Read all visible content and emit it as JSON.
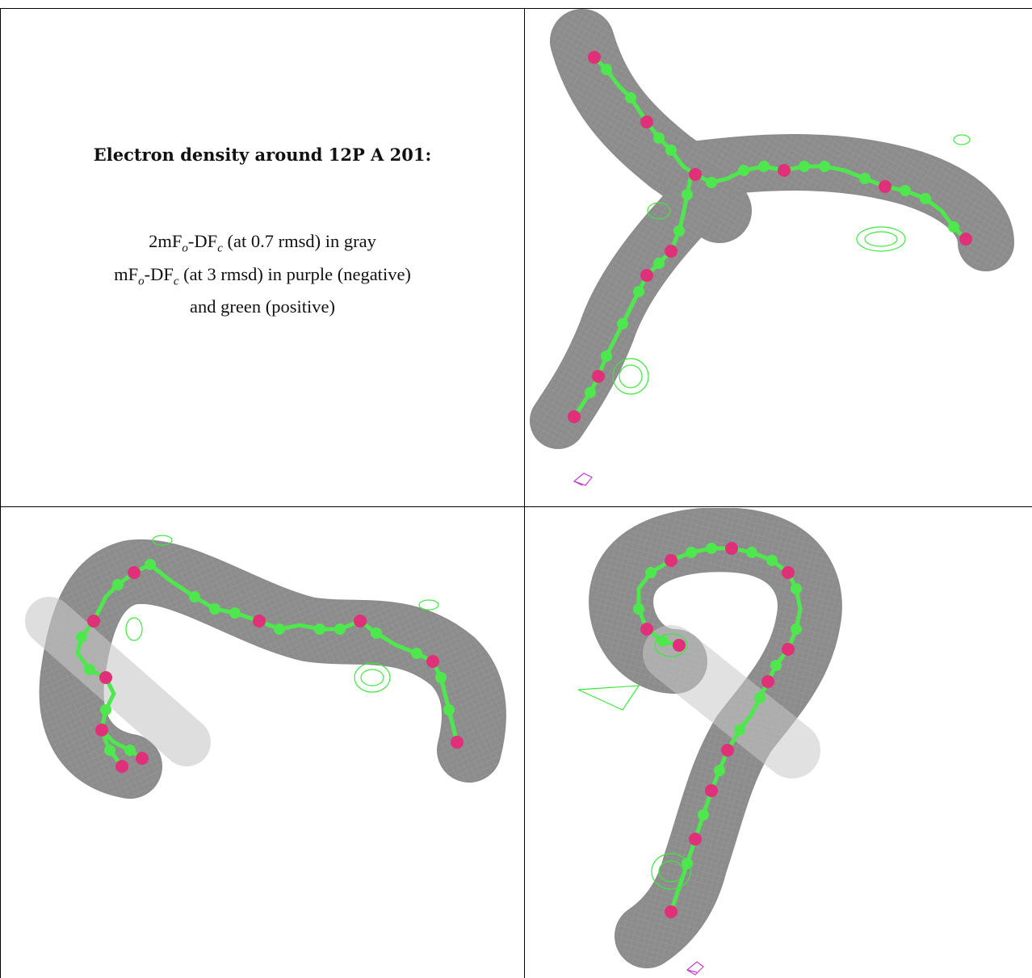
{
  "panel_text": {
    "title": "Electron density around 12P A 201:",
    "line1": {
      "prefix": "2mF",
      "sub1": "o",
      "mid": "-DF",
      "sub2": "c",
      "suffix": " (at 0.7 rmsd) in gray"
    },
    "line2": {
      "prefix": "mF",
      "sub1": "o",
      "mid": "-DF",
      "sub2": "c",
      "suffix": " (at 3 rmsd) in purple (negative)"
    },
    "line3": "and green (positive)"
  },
  "colors": {
    "mesh_gray": "#9a9a9a",
    "carbon_green": "#4ee84e",
    "oxygen_magenta": "#e0307a",
    "positive_green": "#3ee83e",
    "negative_purple": "#c040d0",
    "border": "#000000"
  },
  "views": [
    {
      "name": "view-top-right",
      "shape": "y-shaped ligand"
    },
    {
      "name": "view-bottom-left",
      "shape": "s-shaped ligand"
    },
    {
      "name": "view-bottom-right",
      "shape": "loop-shaped ligand"
    }
  ]
}
